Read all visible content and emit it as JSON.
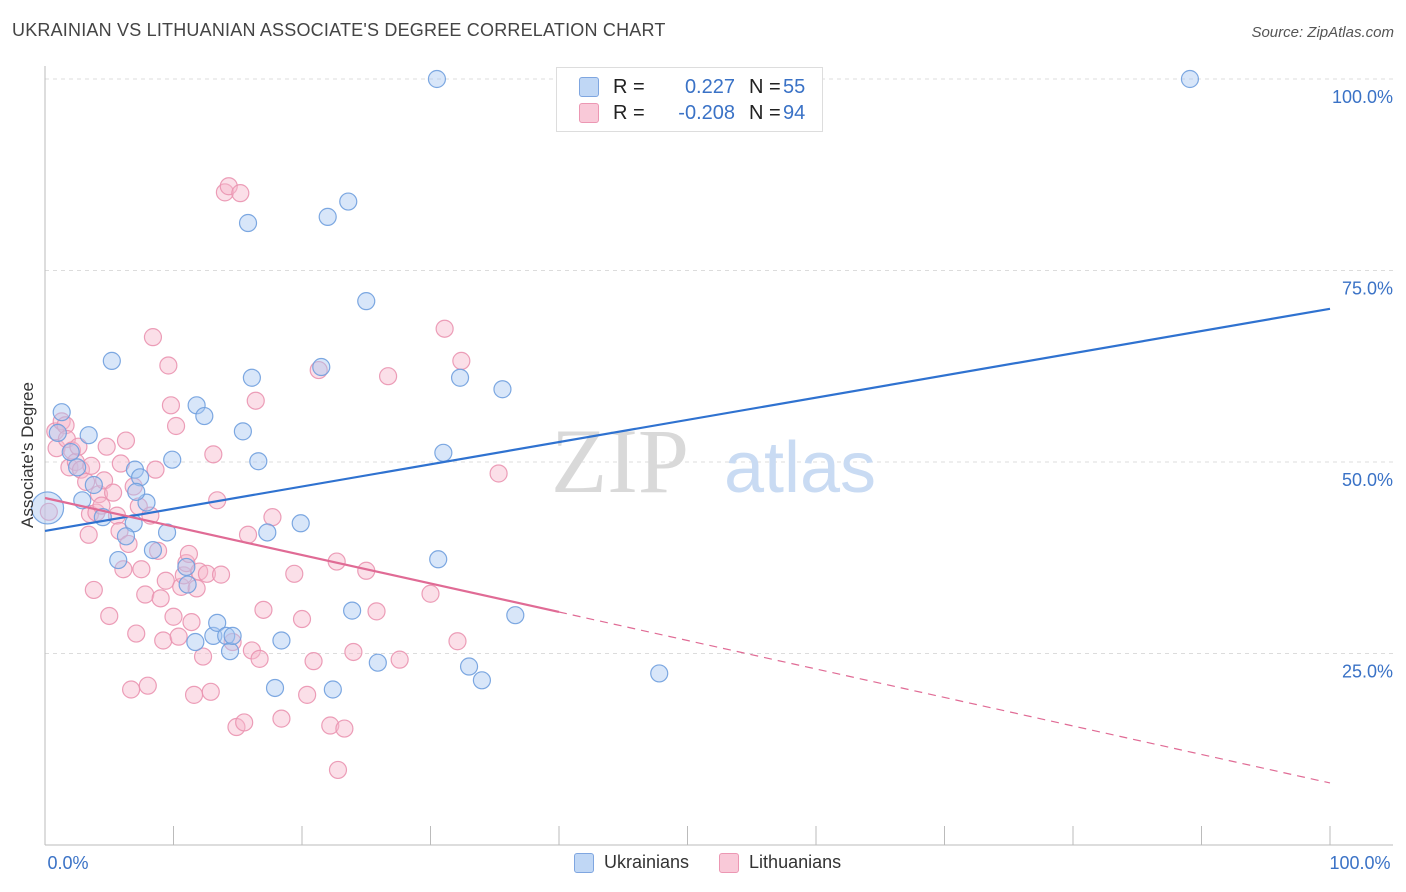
{
  "title": "UKRAINIAN VS LITHUANIAN ASSOCIATE'S DEGREE CORRELATION CHART",
  "source": "Source: ZipAtlas.com",
  "watermark": {
    "zip": "ZIP",
    "atlas": "atlas"
  },
  "legend": {
    "rows": [
      {
        "r_label": "R =",
        "r_value": "0.227",
        "n_label": "N =",
        "n_value": "55"
      },
      {
        "r_label": "R =",
        "r_value": "-0.208",
        "n_label": "N =",
        "n_value": "94"
      }
    ]
  },
  "bottom_legend": [
    "Ukrainians",
    "Lithuanians"
  ],
  "chart_data": {
    "type": "scatter",
    "title": "UKRAINIAN VS LITHUANIAN ASSOCIATE'S DEGREE CORRELATION CHART",
    "xlabel": "",
    "ylabel": "Associate's Degree",
    "xlim": [
      0,
      100
    ],
    "ylim": [
      0,
      100
    ],
    "x_tick_labels": [
      "0.0%",
      "100.0%"
    ],
    "y_tick_labels": [
      "25.0%",
      "50.0%",
      "75.0%",
      "100.0%"
    ],
    "y_ticks": [
      25,
      50,
      75,
      100
    ],
    "grid": true,
    "colors": {
      "ukrainians": "#a9c8f2",
      "ukrainians_line": "#2f72d0",
      "lithuanians": "#f6b7cb",
      "lithuanians_line": "#e06b95",
      "axis_text": "#3a72c6"
    },
    "series": [
      {
        "name": "Ukrainians",
        "r": 0.227,
        "n": 55,
        "trend": {
          "x": [
            0,
            100
          ],
          "y": [
            41.0,
            70.0
          ],
          "solid_to": 100
        },
        "points": [
          [
            0.2,
            44.0
          ],
          [
            1.3,
            56.5
          ],
          [
            1.0,
            53.8
          ],
          [
            3.4,
            53.5
          ],
          [
            2.0,
            51.3
          ],
          [
            2.5,
            49.3
          ],
          [
            3.8,
            47.0
          ],
          [
            2.9,
            45.0
          ],
          [
            4.5,
            42.8
          ],
          [
            5.2,
            63.2
          ],
          [
            7.0,
            49.0
          ],
          [
            7.9,
            44.7
          ],
          [
            7.4,
            48.0
          ],
          [
            7.1,
            46.1
          ],
          [
            6.9,
            42.0
          ],
          [
            5.7,
            37.2
          ],
          [
            6.3,
            40.3
          ],
          [
            8.4,
            38.5
          ],
          [
            9.5,
            40.8
          ],
          [
            9.9,
            50.3
          ],
          [
            11.0,
            36.3
          ],
          [
            11.1,
            34.0
          ],
          [
            11.7,
            26.5
          ],
          [
            11.8,
            57.4
          ],
          [
            12.4,
            56.0
          ],
          [
            13.1,
            27.3
          ],
          [
            13.4,
            29.0
          ],
          [
            14.1,
            27.3
          ],
          [
            14.4,
            25.3
          ],
          [
            14.6,
            27.3
          ],
          [
            15.4,
            54.0
          ],
          [
            15.8,
            81.2
          ],
          [
            16.1,
            61.0
          ],
          [
            16.6,
            50.1
          ],
          [
            17.3,
            40.8
          ],
          [
            17.9,
            20.5
          ],
          [
            18.4,
            26.7
          ],
          [
            19.9,
            42.0
          ],
          [
            21.5,
            62.4
          ],
          [
            22.0,
            82.0
          ],
          [
            22.4,
            20.3
          ],
          [
            23.6,
            84.0
          ],
          [
            23.9,
            30.6
          ],
          [
            25.0,
            71.0
          ],
          [
            25.9,
            23.8
          ],
          [
            30.5,
            100.0
          ],
          [
            30.6,
            37.3
          ],
          [
            31.0,
            51.2
          ],
          [
            32.3,
            61.0
          ],
          [
            33.0,
            23.3
          ],
          [
            34.0,
            21.5
          ],
          [
            35.6,
            59.5
          ],
          [
            36.6,
            30.0
          ],
          [
            47.8,
            22.4
          ],
          [
            89.1,
            100.0
          ]
        ]
      },
      {
        "name": "Lithuanians",
        "r": -0.208,
        "n": 94,
        "trend": {
          "x": [
            0,
            100
          ],
          "y": [
            45.3,
            8.1
          ],
          "solid_to": 40
        },
        "points": [
          [
            0.3,
            43.5
          ],
          [
            0.8,
            54.0
          ],
          [
            0.9,
            51.8
          ],
          [
            1.3,
            55.3
          ],
          [
            1.6,
            54.8
          ],
          [
            1.7,
            53.0
          ],
          [
            1.9,
            49.3
          ],
          [
            2.1,
            51.5
          ],
          [
            2.4,
            50.0
          ],
          [
            2.6,
            52.0
          ],
          [
            2.8,
            49.0
          ],
          [
            3.2,
            47.4
          ],
          [
            3.5,
            43.2
          ],
          [
            3.4,
            40.5
          ],
          [
            3.6,
            49.5
          ],
          [
            3.8,
            33.3
          ],
          [
            4.0,
            43.4
          ],
          [
            4.2,
            45.8
          ],
          [
            4.4,
            44.3
          ],
          [
            4.6,
            47.6
          ],
          [
            4.8,
            52.0
          ],
          [
            5.0,
            29.9
          ],
          [
            5.3,
            46.0
          ],
          [
            5.6,
            43.0
          ],
          [
            5.8,
            41.0
          ],
          [
            5.9,
            49.8
          ],
          [
            6.1,
            36.0
          ],
          [
            6.3,
            52.8
          ],
          [
            6.5,
            39.3
          ],
          [
            6.7,
            20.3
          ],
          [
            6.9,
            46.8
          ],
          [
            7.1,
            27.6
          ],
          [
            7.3,
            44.2
          ],
          [
            7.5,
            36.0
          ],
          [
            7.8,
            32.7
          ],
          [
            8.0,
            20.8
          ],
          [
            8.2,
            43.0
          ],
          [
            8.4,
            66.3
          ],
          [
            8.6,
            49.0
          ],
          [
            8.8,
            38.4
          ],
          [
            9.0,
            32.2
          ],
          [
            9.2,
            26.7
          ],
          [
            9.4,
            34.5
          ],
          [
            9.6,
            62.6
          ],
          [
            9.8,
            57.4
          ],
          [
            10.0,
            29.8
          ],
          [
            10.2,
            54.7
          ],
          [
            10.4,
            27.2
          ],
          [
            10.6,
            33.7
          ],
          [
            10.8,
            35.2
          ],
          [
            11.0,
            36.8
          ],
          [
            11.2,
            38.0
          ],
          [
            11.4,
            29.1
          ],
          [
            11.6,
            19.6
          ],
          [
            11.8,
            33.5
          ],
          [
            12.0,
            35.7
          ],
          [
            12.3,
            24.6
          ],
          [
            12.6,
            35.4
          ],
          [
            12.9,
            20.0
          ],
          [
            13.1,
            51.0
          ],
          [
            13.4,
            45.0
          ],
          [
            13.7,
            35.3
          ],
          [
            14.0,
            85.2
          ],
          [
            14.3,
            86.0
          ],
          [
            14.6,
            26.5
          ],
          [
            14.9,
            15.4
          ],
          [
            15.2,
            85.1
          ],
          [
            15.5,
            16.0
          ],
          [
            15.8,
            40.5
          ],
          [
            16.1,
            25.4
          ],
          [
            16.4,
            58.0
          ],
          [
            16.7,
            24.3
          ],
          [
            17.0,
            30.7
          ],
          [
            17.7,
            42.8
          ],
          [
            18.4,
            16.5
          ],
          [
            19.4,
            35.4
          ],
          [
            20.0,
            29.5
          ],
          [
            20.4,
            19.6
          ],
          [
            20.9,
            24.0
          ],
          [
            21.3,
            62.0
          ],
          [
            22.2,
            15.6
          ],
          [
            22.7,
            37.0
          ],
          [
            22.8,
            9.8
          ],
          [
            23.3,
            15.2
          ],
          [
            24.0,
            25.2
          ],
          [
            25.0,
            35.8
          ],
          [
            25.8,
            30.5
          ],
          [
            26.7,
            61.2
          ],
          [
            27.6,
            24.2
          ],
          [
            30.0,
            32.8
          ],
          [
            31.1,
            67.4
          ],
          [
            32.1,
            26.6
          ],
          [
            32.4,
            63.2
          ],
          [
            35.3,
            48.5
          ]
        ]
      }
    ]
  }
}
